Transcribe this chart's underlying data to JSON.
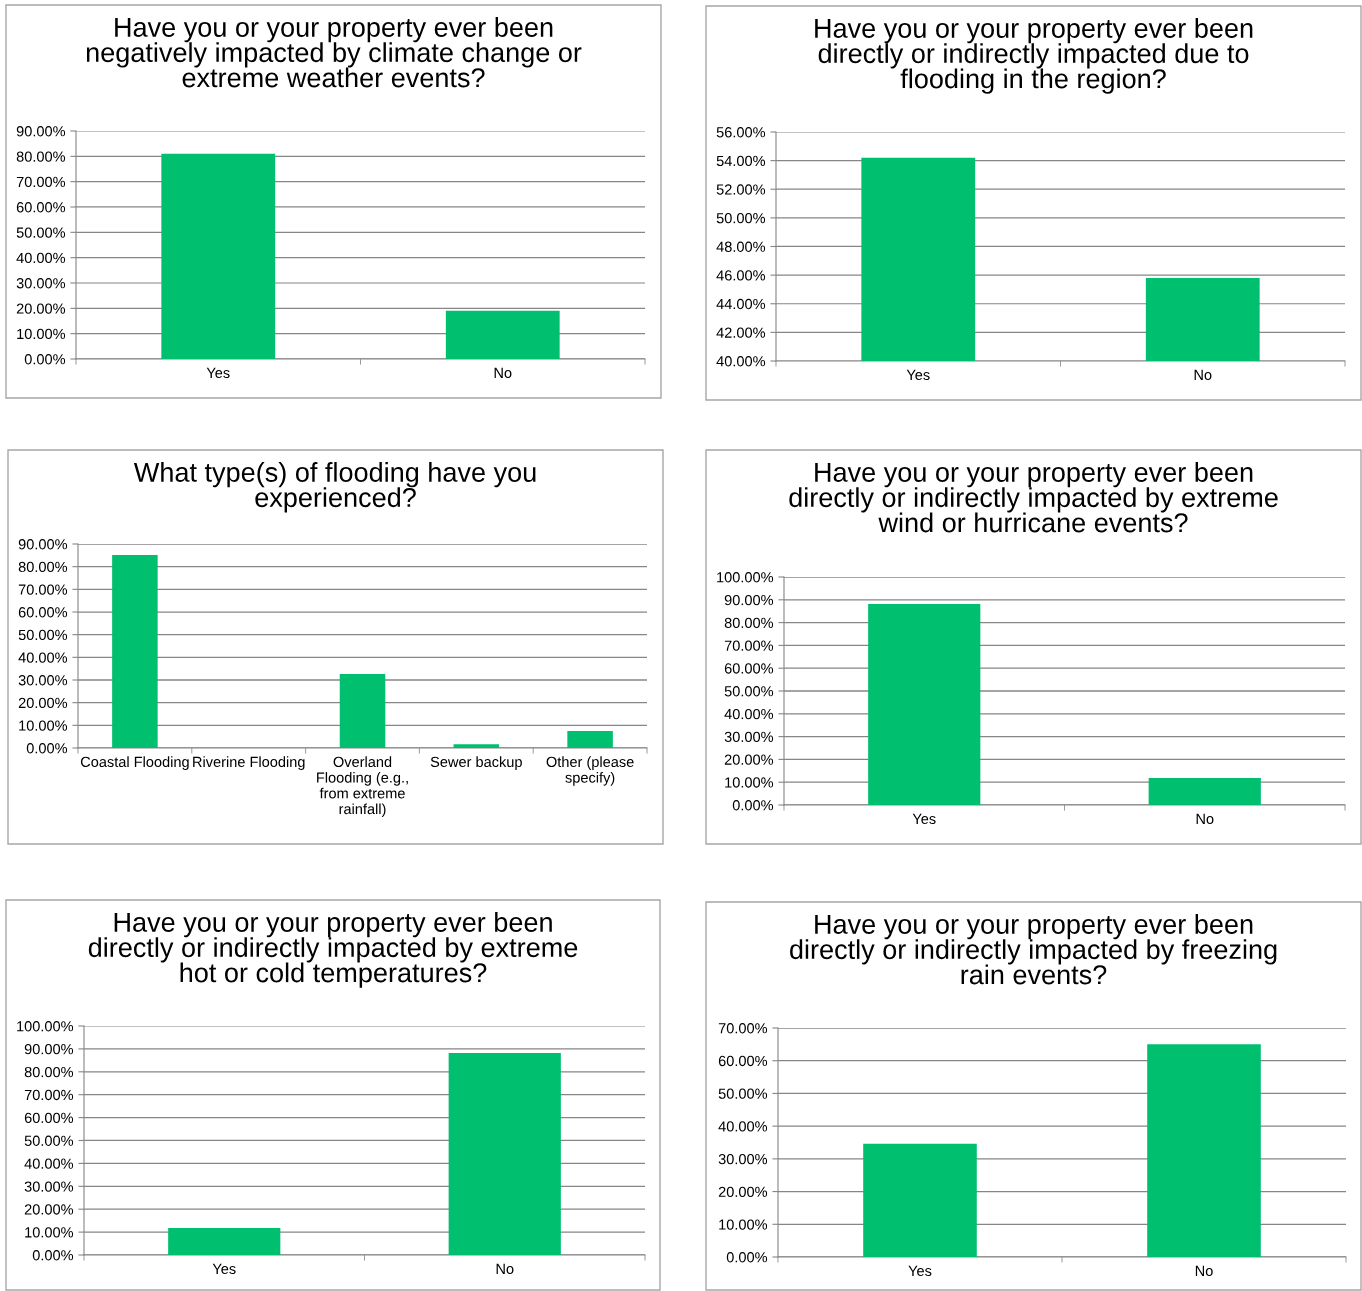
{
  "chart_data": [
    {
      "type": "bar",
      "title": "Have you or your property ever been\nnegatively impacted by climate change or\nextreme weather events?",
      "categories": [
        "Yes",
        "No"
      ],
      "values": [
        81.0,
        19.0
      ],
      "color": "#00bf6f",
      "ylim": [
        0,
        90
      ],
      "yticks": [
        {
          "value": 0,
          "label": "0.00%"
        },
        {
          "value": 10,
          "label": "10.00%"
        },
        {
          "value": 20,
          "label": "20.00%"
        },
        {
          "value": 30,
          "label": "30.00%"
        },
        {
          "value": 40,
          "label": "40.00%"
        },
        {
          "value": 50,
          "label": "50.00%"
        },
        {
          "value": 60,
          "label": "60.00%"
        },
        {
          "value": 70,
          "label": "70.00%"
        },
        {
          "value": 80,
          "label": "80.00%"
        },
        {
          "value": 90,
          "label": "90.00%"
        }
      ],
      "grid": "y"
    },
    {
      "type": "bar",
      "title": "Have you or your property ever been\ndirectly or indirectly impacted due to\nflooding in the region?",
      "categories": [
        "Yes",
        "No"
      ],
      "values": [
        54.2,
        45.8
      ],
      "color": "#00bf6f",
      "ylim": [
        40,
        56
      ],
      "yticks": [
        {
          "value": 40,
          "label": "40.00%"
        },
        {
          "value": 42,
          "label": "42.00%"
        },
        {
          "value": 44,
          "label": "44.00%"
        },
        {
          "value": 46,
          "label": "46.00%"
        },
        {
          "value": 48,
          "label": "48.00%"
        },
        {
          "value": 50,
          "label": "50.00%"
        },
        {
          "value": 52,
          "label": "52.00%"
        },
        {
          "value": 54,
          "label": "54.00%"
        },
        {
          "value": 56,
          "label": "56.00%"
        }
      ],
      "grid": "y"
    },
    {
      "type": "bar",
      "title": "What type(s) of flooding have you\nexperienced?",
      "categories": [
        "Coastal Flooding",
        "Riverine Flooding",
        "Overland\nFlooding (e.g.,\nfrom extreme\nrainfall)",
        "Sewer backup",
        "Other (please\nspecify)"
      ],
      "values": [
        85.1,
        0,
        32.6,
        1.6,
        7.5
      ],
      "color": "#00bf6f",
      "ylim": [
        0,
        90
      ],
      "yticks": [
        {
          "value": 0,
          "label": "0.00%"
        },
        {
          "value": 10,
          "label": "10.00%"
        },
        {
          "value": 20,
          "label": "20.00%"
        },
        {
          "value": 30,
          "label": "30.00%"
        },
        {
          "value": 40,
          "label": "40.00%"
        },
        {
          "value": 50,
          "label": "50.00%"
        },
        {
          "value": 60,
          "label": "60.00%"
        },
        {
          "value": 70,
          "label": "70.00%"
        },
        {
          "value": 80,
          "label": "80.00%"
        },
        {
          "value": 90,
          "label": "90.00%"
        }
      ],
      "grid": "y"
    },
    {
      "type": "bar",
      "title": "Have you or your property ever been\ndirectly or indirectly impacted by extreme\nwind or hurricane events?",
      "categories": [
        "Yes",
        "No"
      ],
      "values": [
        88.2,
        11.8
      ],
      "color": "#00bf6f",
      "ylim": [
        0,
        100
      ],
      "yticks": [
        {
          "value": 0,
          "label": "0.00%"
        },
        {
          "value": 10,
          "label": "10.00%"
        },
        {
          "value": 20,
          "label": "20.00%"
        },
        {
          "value": 30,
          "label": "30.00%"
        },
        {
          "value": 40,
          "label": "40.00%"
        },
        {
          "value": 50,
          "label": "50.00%"
        },
        {
          "value": 60,
          "label": "60.00%"
        },
        {
          "value": 70,
          "label": "70.00%"
        },
        {
          "value": 80,
          "label": "80.00%"
        },
        {
          "value": 90,
          "label": "90.00%"
        },
        {
          "value": 100,
          "label": "100.00%"
        }
      ],
      "grid": "y"
    },
    {
      "type": "bar",
      "title": "Have you or your property ever been\ndirectly or indirectly impacted by extreme\nhot or cold temperatures?",
      "categories": [
        "Yes",
        "No"
      ],
      "values": [
        11.8,
        88.2
      ],
      "color": "#00bf6f",
      "ylim": [
        0,
        100
      ],
      "yticks": [
        {
          "value": 0,
          "label": "0.00%"
        },
        {
          "value": 10,
          "label": "10.00%"
        },
        {
          "value": 20,
          "label": "20.00%"
        },
        {
          "value": 30,
          "label": "30.00%"
        },
        {
          "value": 40,
          "label": "40.00%"
        },
        {
          "value": 50,
          "label": "50.00%"
        },
        {
          "value": 60,
          "label": "60.00%"
        },
        {
          "value": 70,
          "label": "70.00%"
        },
        {
          "value": 80,
          "label": "80.00%"
        },
        {
          "value": 90,
          "label": "90.00%"
        },
        {
          "value": 100,
          "label": "100.00%"
        }
      ],
      "grid": "y"
    },
    {
      "type": "bar",
      "title": "Have you or your property ever been\ndirectly or indirectly impacted by freezing\nrain events?",
      "categories": [
        "Yes",
        "No"
      ],
      "values": [
        34.6,
        65.0
      ],
      "color": "#00bf6f",
      "ylim": [
        0,
        70
      ],
      "yticks": [
        {
          "value": 0,
          "label": "0.00%"
        },
        {
          "value": 10,
          "label": "10.00%"
        },
        {
          "value": 20,
          "label": "20.00%"
        },
        {
          "value": 30,
          "label": "30.00%"
        },
        {
          "value": 40,
          "label": "40.00%"
        },
        {
          "value": 50,
          "label": "50.00%"
        },
        {
          "value": 60,
          "label": "60.00%"
        },
        {
          "value": 70,
          "label": "70.00%"
        }
      ],
      "grid": "y"
    }
  ]
}
